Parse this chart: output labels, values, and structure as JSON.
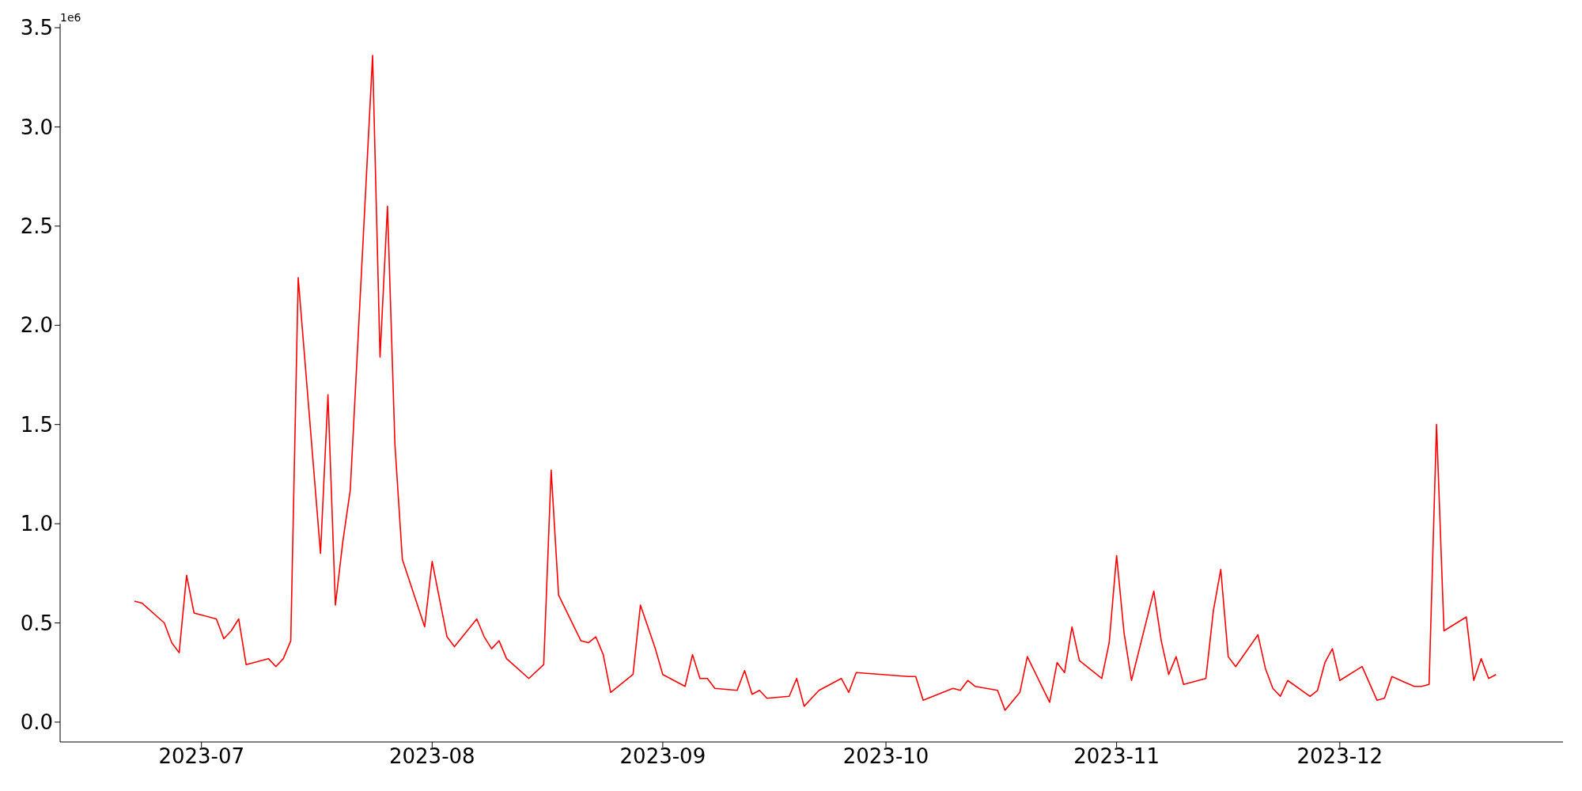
{
  "chart_data": {
    "type": "line",
    "x": [
      "2023-06-22",
      "2023-06-23",
      "2023-06-26",
      "2023-06-27",
      "2023-06-28",
      "2023-06-29",
      "2023-06-30",
      "2023-07-03",
      "2023-07-04",
      "2023-07-05",
      "2023-07-06",
      "2023-07-07",
      "2023-07-10",
      "2023-07-11",
      "2023-07-12",
      "2023-07-13",
      "2023-07-14",
      "2023-07-17",
      "2023-07-18",
      "2023-07-19",
      "2023-07-20",
      "2023-07-21",
      "2023-07-24",
      "2023-07-25",
      "2023-07-26",
      "2023-07-27",
      "2023-07-28",
      "2023-07-31",
      "2023-08-01",
      "2023-08-03",
      "2023-08-04",
      "2023-08-07",
      "2023-08-08",
      "2023-08-09",
      "2023-08-10",
      "2023-08-11",
      "2023-08-14",
      "2023-08-16",
      "2023-08-17",
      "2023-08-18",
      "2023-08-21",
      "2023-08-22",
      "2023-08-23",
      "2023-08-24",
      "2023-08-25",
      "2023-08-28",
      "2023-08-29",
      "2023-08-30",
      "2023-08-31",
      "2023-09-01",
      "2023-09-04",
      "2023-09-05",
      "2023-09-06",
      "2023-09-07",
      "2023-09-08",
      "2023-09-11",
      "2023-09-12",
      "2023-09-13",
      "2023-09-14",
      "2023-09-15",
      "2023-09-18",
      "2023-09-19",
      "2023-09-20",
      "2023-09-22",
      "2023-09-25",
      "2023-09-26",
      "2023-09-27",
      "2023-10-04",
      "2023-10-05",
      "2023-10-06",
      "2023-10-10",
      "2023-10-11",
      "2023-10-12",
      "2023-10-13",
      "2023-10-16",
      "2023-10-17",
      "2023-10-19",
      "2023-10-20",
      "2023-10-23",
      "2023-10-24",
      "2023-10-25",
      "2023-10-26",
      "2023-10-27",
      "2023-10-30",
      "2023-10-31",
      "2023-11-01",
      "2023-11-02",
      "2023-11-03",
      "2023-11-06",
      "2023-11-07",
      "2023-11-08",
      "2023-11-09",
      "2023-11-10",
      "2023-11-13",
      "2023-11-14",
      "2023-11-15",
      "2023-11-16",
      "2023-11-17",
      "2023-11-20",
      "2023-11-21",
      "2023-11-22",
      "2023-11-23",
      "2023-11-24",
      "2023-11-27",
      "2023-11-28",
      "2023-11-29",
      "2023-11-30",
      "2023-12-01",
      "2023-12-04",
      "2023-12-06",
      "2023-12-07",
      "2023-12-08",
      "2023-12-11",
      "2023-12-12",
      "2023-12-13",
      "2023-12-14",
      "2023-12-15",
      "2023-12-18",
      "2023-12-19",
      "2023-12-20",
      "2023-12-21",
      "2023-12-22"
    ],
    "series": [
      {
        "color": "#ff0000",
        "values": [
          0.61,
          0.6,
          0.5,
          0.4,
          0.35,
          0.74,
          0.55,
          0.52,
          0.42,
          0.46,
          0.52,
          0.29,
          0.32,
          0.28,
          0.32,
          0.41,
          2.24,
          0.85,
          1.65,
          0.59,
          0.91,
          1.17,
          3.36,
          1.84,
          2.6,
          1.4,
          0.82,
          0.48,
          0.81,
          0.43,
          0.38,
          0.52,
          0.43,
          0.37,
          0.41,
          0.32,
          0.22,
          0.29,
          1.27,
          0.64,
          0.41,
          0.4,
          0.43,
          0.34,
          0.15,
          0.24,
          0.59,
          0.48,
          0.37,
          0.24,
          0.18,
          0.34,
          0.22,
          0.22,
          0.17,
          0.16,
          0.26,
          0.14,
          0.16,
          0.12,
          0.13,
          0.22,
          0.08,
          0.16,
          0.22,
          0.15,
          0.25,
          0.23,
          0.23,
          0.11,
          0.17,
          0.16,
          0.21,
          0.18,
          0.16,
          0.06,
          0.15,
          0.33,
          0.1,
          0.3,
          0.25,
          0.48,
          0.31,
          0.22,
          0.4,
          0.84,
          0.45,
          0.21,
          0.66,
          0.41,
          0.24,
          0.33,
          0.19,
          0.22,
          0.56,
          0.77,
          0.33,
          0.28,
          0.44,
          0.27,
          0.17,
          0.13,
          0.21,
          0.13,
          0.16,
          0.3,
          0.37,
          0.21,
          0.28,
          0.11,
          0.12,
          0.23,
          0.18,
          0.18,
          0.19,
          1.5,
          0.46,
          0.53,
          0.21,
          0.32,
          0.22,
          0.24
        ]
      }
    ],
    "xlim": [
      "2023-06-12",
      "2023-12-31"
    ],
    "xticks": [
      {
        "value": "2023-07-01",
        "label": "2023-07"
      },
      {
        "value": "2023-08-01",
        "label": "2023-08"
      },
      {
        "value": "2023-09-01",
        "label": "2023-09"
      },
      {
        "value": "2023-10-01",
        "label": "2023-10"
      },
      {
        "value": "2023-11-01",
        "label": "2023-11"
      },
      {
        "value": "2023-12-01",
        "label": "2023-12"
      }
    ],
    "ylim": [
      -0.1,
      3.52
    ],
    "yticks": [
      {
        "value": 0,
        "label": "0.0"
      },
      {
        "value": 0.5,
        "label": "0.5"
      },
      {
        "value": 1,
        "label": "1.0"
      },
      {
        "value": 1.5,
        "label": "1.5"
      },
      {
        "value": 2,
        "label": "2.0"
      },
      {
        "value": 2.5,
        "label": "2.5"
      },
      {
        "value": 3,
        "label": "3.0"
      },
      {
        "value": 3.5,
        "label": "3.5"
      }
    ],
    "annotations": [
      "1e6"
    ],
    "grid": false,
    "legend": false,
    "marker": "none",
    "line_style": "solid"
  }
}
